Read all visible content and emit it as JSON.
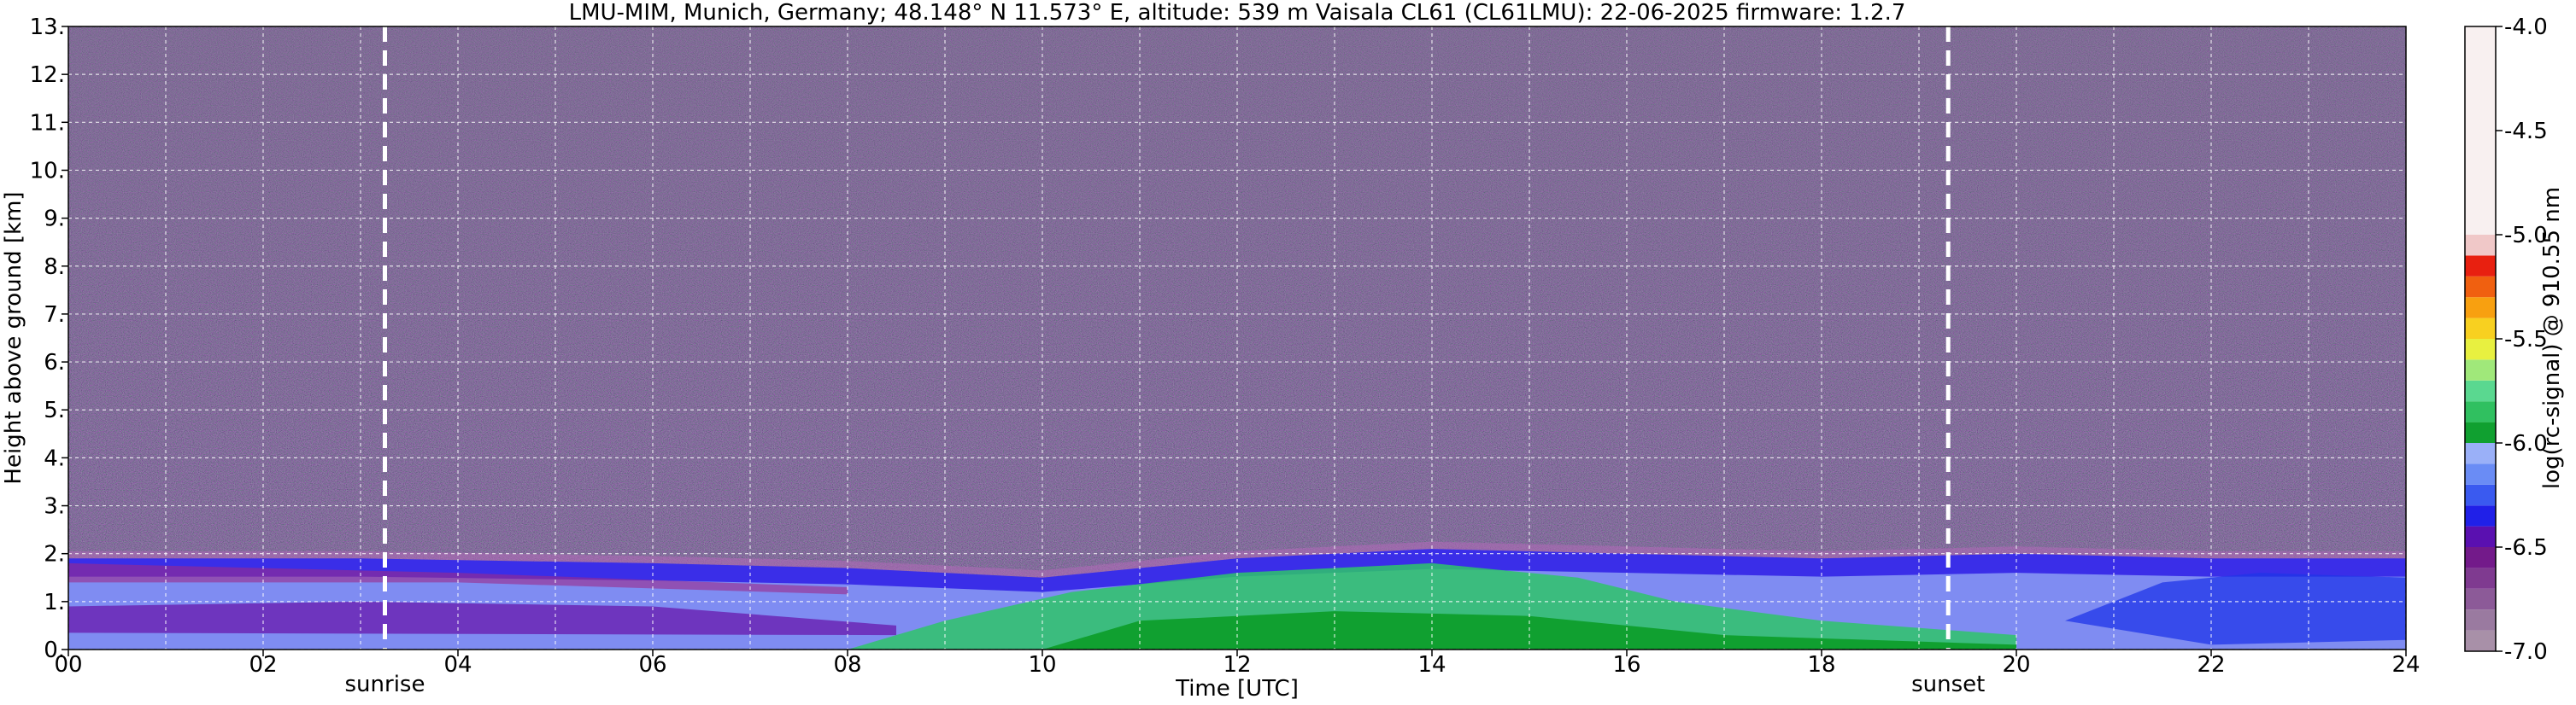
{
  "chart_data": {
    "type": "heatmap",
    "title": "LMU-MIM, Munich, Germany; 48.148° N 11.573° E, altitude: 539 m    Vaisala CL61 (CL61LMU): 22-06-2025    firmware: 1.2.7",
    "xlabel": "Time [UTC]",
    "ylabel": "Height above ground [km]",
    "colorbar_label": "log(rc-signal) @ 910.55 nm",
    "xlim": [
      0,
      24
    ],
    "ylim": [
      0,
      13
    ],
    "x_ticks": [
      "00",
      "02",
      "04",
      "06",
      "08",
      "10",
      "12",
      "14",
      "16",
      "18",
      "20",
      "22",
      "24"
    ],
    "y_ticks": [
      "0.",
      "1.",
      "2.",
      "3.",
      "4.",
      "5.",
      "6.",
      "7.",
      "8.",
      "9.",
      "10.",
      "11.",
      "12.",
      "13."
    ],
    "colorbar_range": [
      -7.0,
      -4.0
    ],
    "colorbar_ticks": [
      "-4.0",
      "-4.5",
      "-5.0",
      "-5.5",
      "-6.0",
      "-6.5",
      "-7.0"
    ],
    "grid": true,
    "markers": [
      {
        "label": "sunrise",
        "time": 3.25
      },
      {
        "label": "sunset",
        "time": 19.3
      }
    ],
    "layers": [
      {
        "time": 0,
        "boundary_layer_top_km": 1.9
      },
      {
        "time": 3,
        "boundary_layer_top_km": 1.9
      },
      {
        "time": 6,
        "boundary_layer_top_km": 1.8
      },
      {
        "time": 8,
        "boundary_layer_top_km": 1.7
      },
      {
        "time": 10,
        "boundary_layer_top_km": 1.5
      },
      {
        "time": 12,
        "boundary_layer_top_km": 1.9
      },
      {
        "time": 14,
        "boundary_layer_top_km": 2.1
      },
      {
        "time": 16,
        "boundary_layer_top_km": 2.0
      },
      {
        "time": 18,
        "boundary_layer_top_km": 1.9
      },
      {
        "time": 20,
        "boundary_layer_top_km": 2.0
      },
      {
        "time": 22,
        "boundary_layer_top_km": 1.9
      },
      {
        "time": 24,
        "boundary_layer_top_km": 1.9
      }
    ],
    "colors": {
      "background_noise": "#4a3a5c",
      "marker_line": "#ffffff",
      "grid_line": "#ffffff"
    }
  }
}
